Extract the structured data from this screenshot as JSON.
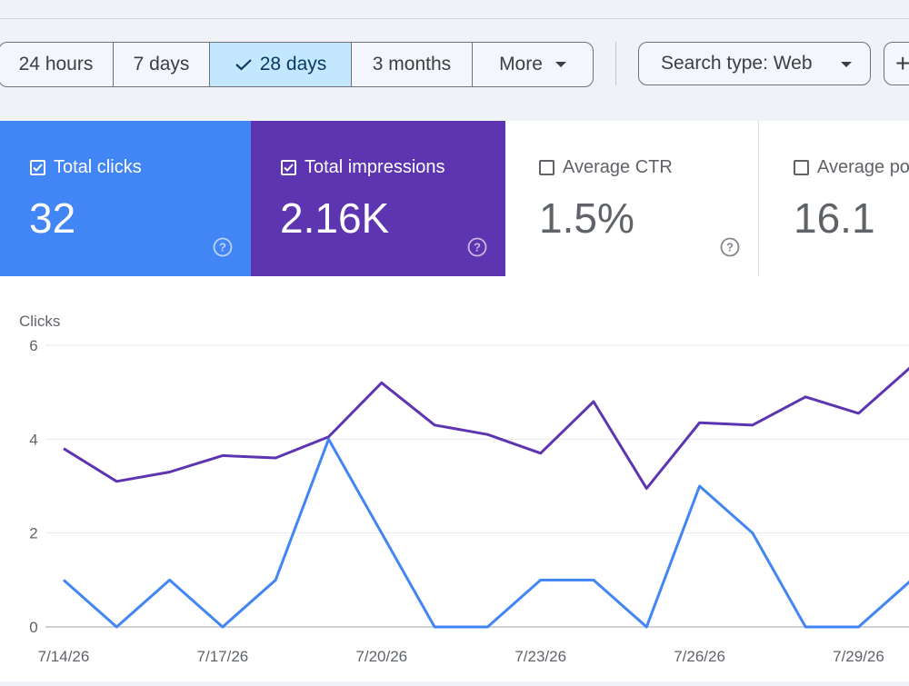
{
  "date_range": {
    "options": [
      "24 hours",
      "7 days",
      "28 days",
      "3 months",
      "More"
    ],
    "selected": "28 days"
  },
  "filters": {
    "search_type": "Search type: Web",
    "add_label": "+"
  },
  "metrics": [
    {
      "label": "Total clicks",
      "value": "32",
      "checked": true,
      "color": "#4285f4"
    },
    {
      "label": "Total impressions",
      "value": "2.16K",
      "checked": true,
      "color": "#5e35b1"
    },
    {
      "label": "Average CTR",
      "value": "1.5%",
      "checked": false
    },
    {
      "label": "Average po",
      "value": "16.1",
      "checked": false
    }
  ],
  "chart_data": {
    "type": "line",
    "ylabel": "Clicks",
    "ylim": [
      0,
      6
    ],
    "yticks": [
      0,
      2,
      4,
      6
    ],
    "x_tick_labels": [
      "7/14/26",
      "7/17/26",
      "7/20/26",
      "7/23/26",
      "7/26/26",
      "7/29/26"
    ],
    "x_tick_indices": [
      0,
      3,
      6,
      9,
      12,
      15
    ],
    "grid": true,
    "series": [
      {
        "name": "Total clicks",
        "color": "#4285f4",
        "values": [
          1,
          0,
          1,
          0,
          1,
          4,
          2,
          0,
          0,
          1,
          1,
          0,
          3,
          2,
          0,
          0,
          1
        ]
      },
      {
        "name": "Total impressions",
        "color": "#5e35b1",
        "values": [
          3.8,
          3.1,
          3.3,
          3.65,
          3.6,
          4.05,
          5.2,
          4.3,
          4.1,
          3.7,
          4.8,
          2.95,
          4.35,
          4.3,
          4.9,
          4.55,
          5.55
        ]
      }
    ]
  }
}
